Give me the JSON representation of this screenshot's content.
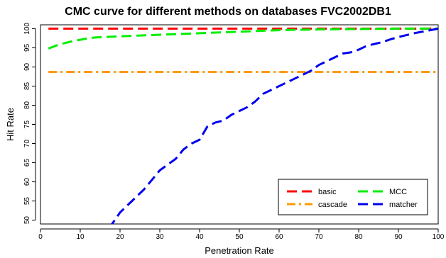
{
  "chart_data": {
    "type": "line",
    "title": "CMC curve for different methods on databases FVC2002DB1",
    "xlabel": "Penetration Rate",
    "ylabel": "Hit Rate",
    "xlim": [
      0,
      100
    ],
    "ylim": [
      49,
      101
    ],
    "xticks": [
      0,
      10,
      20,
      30,
      40,
      50,
      60,
      70,
      80,
      90,
      100
    ],
    "yticks": [
      50,
      55,
      60,
      65,
      70,
      75,
      80,
      85,
      90,
      95,
      100
    ],
    "grid": false,
    "legend_position": "bottom-right",
    "series": [
      {
        "name": "basic",
        "color": "#ff0000",
        "dash": "long-dash",
        "points": [
          [
            2,
            100
          ],
          [
            100,
            100
          ]
        ]
      },
      {
        "name": "MCC",
        "color": "#00ee00",
        "dash": "long-dash",
        "points": [
          [
            2,
            94.8
          ],
          [
            4,
            95.6
          ],
          [
            6,
            96.2
          ],
          [
            8,
            96.7
          ],
          [
            10,
            97.1
          ],
          [
            12,
            97.5
          ],
          [
            14,
            97.7
          ],
          [
            16,
            97.8
          ],
          [
            18,
            97.9
          ],
          [
            20,
            98.0
          ],
          [
            25,
            98.2
          ],
          [
            30,
            98.4
          ],
          [
            35,
            98.6
          ],
          [
            40,
            98.8
          ],
          [
            45,
            99.0
          ],
          [
            50,
            99.2
          ],
          [
            55,
            99.4
          ],
          [
            60,
            99.6
          ],
          [
            65,
            99.7
          ],
          [
            70,
            99.8
          ],
          [
            80,
            99.9
          ],
          [
            90,
            100
          ],
          [
            100,
            100
          ]
        ]
      },
      {
        "name": "cascade",
        "color": "#ff9900",
        "dash": "dash-dot",
        "points": [
          [
            2,
            88.7
          ],
          [
            100,
            88.7
          ]
        ]
      },
      {
        "name": "matcher",
        "color": "#0000ee",
        "dash": "long-dash",
        "points": [
          [
            17,
            48
          ],
          [
            18,
            49
          ],
          [
            20,
            52
          ],
          [
            22,
            54
          ],
          [
            24,
            56
          ],
          [
            26,
            58
          ],
          [
            28,
            60.5
          ],
          [
            30,
            63
          ],
          [
            32,
            64.5
          ],
          [
            34,
            66
          ],
          [
            36,
            68.5
          ],
          [
            38,
            70
          ],
          [
            40,
            71
          ],
          [
            42,
            74.5
          ],
          [
            44,
            75.5
          ],
          [
            46,
            76
          ],
          [
            48,
            77.5
          ],
          [
            50,
            78.5
          ],
          [
            52,
            79.5
          ],
          [
            54,
            81
          ],
          [
            56,
            83
          ],
          [
            58,
            84
          ],
          [
            60,
            85
          ],
          [
            62,
            86
          ],
          [
            64,
            87
          ],
          [
            66,
            88
          ],
          [
            68,
            89
          ],
          [
            70,
            90.5
          ],
          [
            72,
            91.5
          ],
          [
            74,
            92.5
          ],
          [
            76,
            93.5
          ],
          [
            78,
            93.8
          ],
          [
            80,
            94.5
          ],
          [
            82,
            95.5
          ],
          [
            84,
            96
          ],
          [
            86,
            96.5
          ],
          [
            88,
            97.2
          ],
          [
            90,
            97.8
          ],
          [
            92,
            98.3
          ],
          [
            94,
            98.8
          ],
          [
            96,
            99.2
          ],
          [
            98,
            99.6
          ],
          [
            100,
            100
          ]
        ]
      }
    ]
  }
}
